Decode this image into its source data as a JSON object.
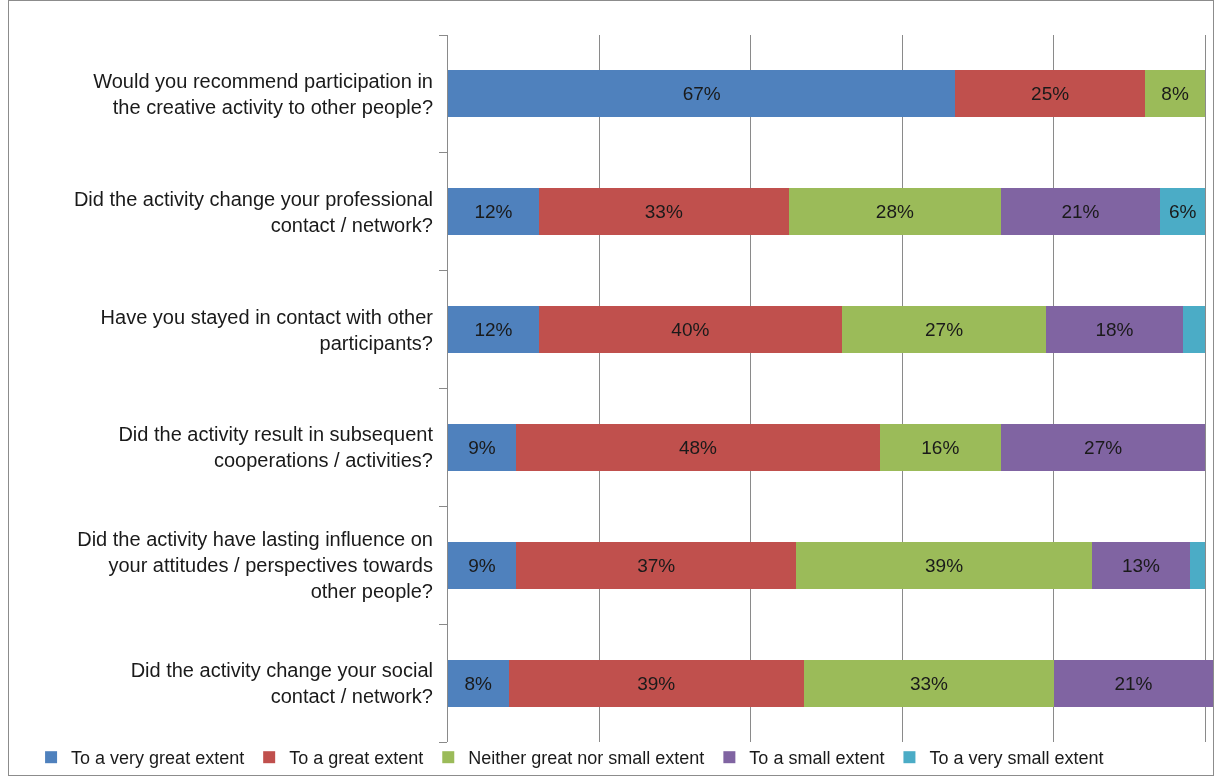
{
  "chart_data": {
    "type": "bar",
    "orientation": "horizontal",
    "stacked": true,
    "categories": [
      "Would you recommend participation in the creative activity to other people?",
      "Did the activity change your professional contact / network?",
      "Have you stayed in contact with other participants?",
      "Did the activity result in subsequent cooperations / activities?",
      "Did the activity have lasting influence on your attitudes / perspectives towards other people?",
      "Did the activity change your social contact / network?"
    ],
    "series": [
      {
        "name": "To a very great extent",
        "color": "#4f81bd",
        "values": [
          67,
          12,
          12,
          9,
          9,
          8
        ],
        "value_labels": [
          "67%",
          "12%",
          "12%",
          "9%",
          "9%",
          "8%"
        ]
      },
      {
        "name": "To a great extent",
        "color": "#c0504d",
        "values": [
          25,
          33,
          40,
          48,
          37,
          39
        ],
        "value_labels": [
          "25%",
          "33%",
          "40%",
          "48%",
          "37%",
          "39%"
        ]
      },
      {
        "name": "Neither great nor small extent",
        "color": "#9bbb59",
        "values": [
          8,
          28,
          27,
          16,
          39,
          33
        ],
        "value_labels": [
          "8%",
          "28%",
          "27%",
          "16%",
          "39%",
          "33%"
        ]
      },
      {
        "name": "To a small extent",
        "color": "#8064a2",
        "values": [
          null,
          21,
          18,
          27,
          13,
          21
        ],
        "value_labels": [
          null,
          "21%",
          "18%",
          "27%",
          "13%",
          "21%"
        ]
      },
      {
        "name": "To a very small extent",
        "color": "#4bacc6",
        "values": [
          null,
          6,
          3,
          null,
          2,
          null
        ],
        "value_labels": [
          null,
          "6%",
          null,
          null,
          null,
          null
        ]
      }
    ],
    "xlim": [
      0,
      101
    ],
    "xticks": [
      {
        "value": 0,
        "label": null
      },
      {
        "value": 20,
        "label": null
      },
      {
        "value": 40,
        "label": null
      },
      {
        "value": 60,
        "label": null
      },
      {
        "value": 80,
        "label": null
      },
      {
        "value": 100,
        "label": null
      }
    ],
    "grid": "x",
    "legend": "bottom",
    "tick_labels": "y"
  }
}
